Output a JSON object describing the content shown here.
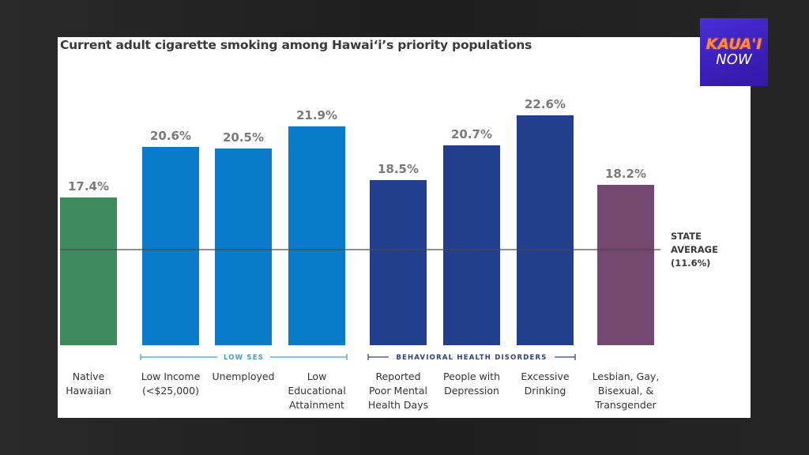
{
  "logo": {
    "line1": "KAUA'I",
    "line2": "NOW"
  },
  "chart_data": {
    "type": "bar",
    "title": "Current adult cigarette smoking among Hawai‘i’s priority populations",
    "xlabel": "",
    "ylabel": "",
    "unit": "%",
    "categories": [
      [
        "Native",
        "Hawaiian"
      ],
      [
        "Low Income",
        "(<$25,000)"
      ],
      [
        "Unemployed"
      ],
      [
        "Low",
        "Educational",
        "Attainment"
      ],
      [
        "Reported",
        "Poor Mental",
        "Health Days"
      ],
      [
        "People with",
        "Depression"
      ],
      [
        "Excessive",
        "Drinking"
      ],
      [
        "Lesbian, Gay,",
        "Bisexual, &",
        "Transgender"
      ]
    ],
    "values": [
      17.4,
      20.6,
      20.5,
      21.9,
      18.5,
      20.7,
      22.6,
      18.2
    ],
    "value_labels": [
      "17.4%",
      "20.6%",
      "20.5%",
      "21.9%",
      "18.5%",
      "20.7%",
      "22.6%",
      "18.2%"
    ],
    "bar_colors": [
      "#3f8a5c",
      "#0a7bc8",
      "#0a7bc8",
      "#0a7bc8",
      "#213f8c",
      "#213f8c",
      "#213f8c",
      "#754872"
    ],
    "groups": [
      {
        "label": "LOW SES",
        "start": 1,
        "end": 3,
        "color": "#3aa0d8"
      },
      {
        "label": "BEHAVIORAL HEALTH DISORDERS",
        "start": 4,
        "end": 6,
        "color": "#2a3f88"
      }
    ],
    "reference_line": {
      "value": 11.6,
      "label": [
        "STATE",
        "AVERAGE",
        "(11.6%)"
      ]
    },
    "grid": false,
    "legend": "none"
  }
}
